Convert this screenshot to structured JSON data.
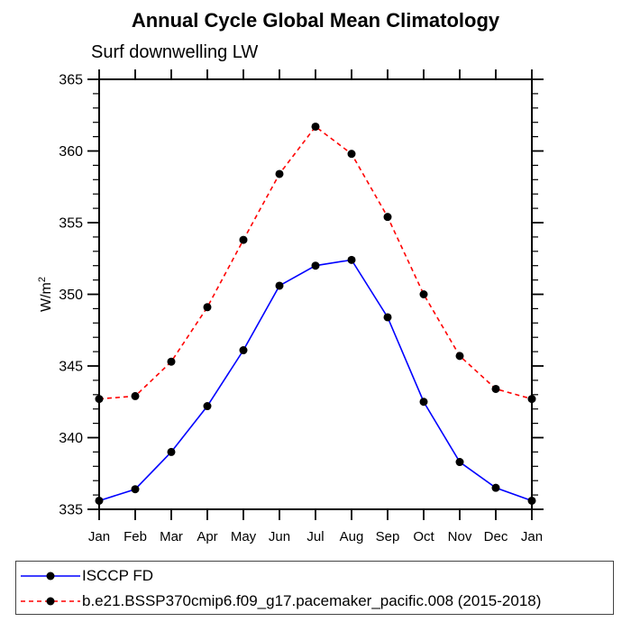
{
  "chart_data": {
    "type": "line",
    "title": "Annual Cycle Global Mean Climatology",
    "subtitle": "Surf downwelling LW",
    "categories": [
      "Jan",
      "Feb",
      "Mar",
      "Apr",
      "May",
      "Jun",
      "Jul",
      "Aug",
      "Sep",
      "Oct",
      "Nov",
      "Dec",
      "Jan"
    ],
    "xlabel": "",
    "ylabel": "W/m²",
    "ylabel_base": "W/m",
    "ylabel_sup": "2",
    "ylim": [
      335,
      365
    ],
    "y_tick_step_major": 5,
    "y_tick_step_minor": 1,
    "y_tick_labels": [
      "335",
      "340",
      "345",
      "350",
      "355",
      "360",
      "365"
    ],
    "grid": false,
    "legend_position": "bottom",
    "axis_color": "#000000",
    "marker_color": "#000000",
    "series": [
      {
        "name": "ISCCP FD",
        "color": "#0000ff",
        "line_style": "solid",
        "marker": "filled-circle",
        "values": [
          335.6,
          336.4,
          339.0,
          342.2,
          346.1,
          350.6,
          352.0,
          352.4,
          348.4,
          342.5,
          338.3,
          336.5,
          335.6
        ]
      },
      {
        "name": "b.e21.BSSP370cmip6.f09_g17.pacemaker_pacific.008 (2015-2018)",
        "color": "#ff0000",
        "line_style": "dashed",
        "marker": "filled-circle",
        "values": [
          342.7,
          342.9,
          345.3,
          349.1,
          353.8,
          358.4,
          361.7,
          359.8,
          355.4,
          350.0,
          345.7,
          343.4,
          342.7
        ]
      }
    ]
  }
}
